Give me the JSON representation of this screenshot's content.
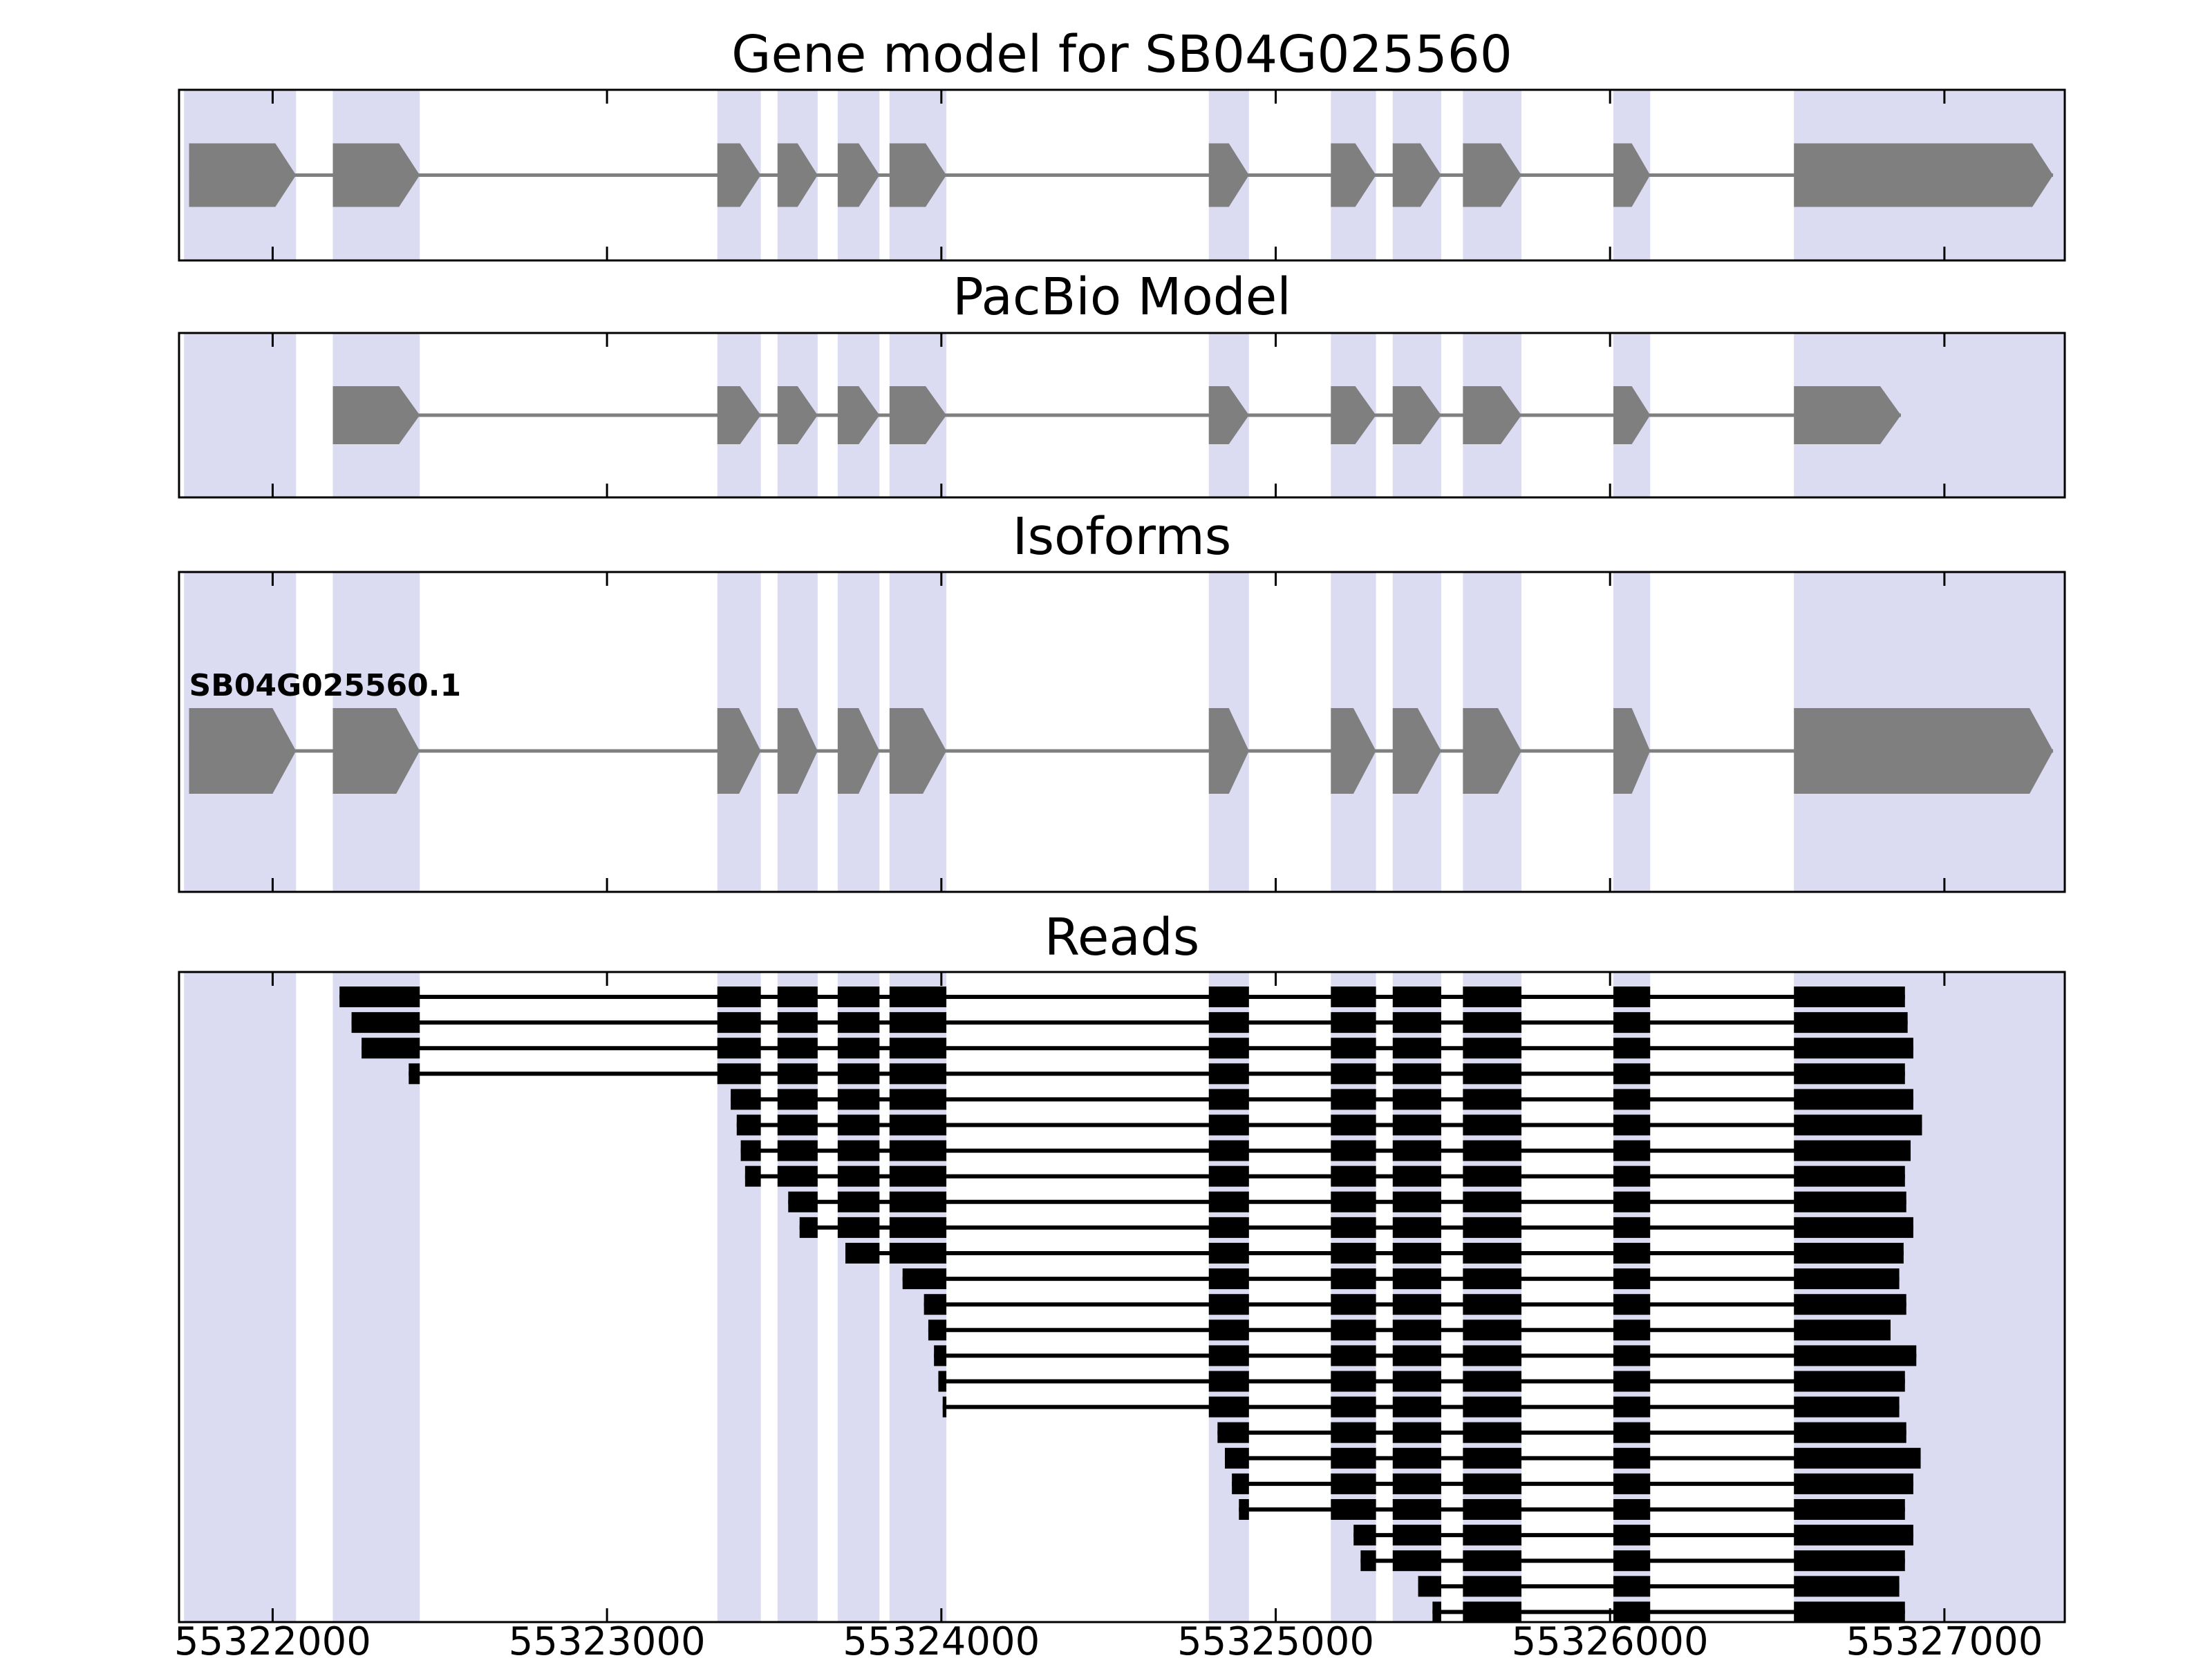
{
  "page": {
    "background": "#ffffff"
  },
  "chart_data": {
    "type": "gene-model-tracks",
    "title": "Gene model for SB04G025560",
    "axis": {
      "min": 55321720,
      "max": 55327360,
      "ticks": [
        55322000,
        55323000,
        55324000,
        55325000,
        55326000,
        55327000
      ],
      "tick_labels": [
        "55322000",
        "55323000",
        "55324000",
        "55325000",
        "55326000",
        "55327000"
      ]
    },
    "colors": {
      "exon": "#7f7f7f",
      "intron_line": "#7f7f7f",
      "highlight": "#dbdbf2",
      "read": "#000000",
      "border": "#000000"
    },
    "highlights": [
      [
        55321735,
        55322070
      ],
      [
        55322180,
        55322440
      ],
      [
        55323330,
        55323460
      ],
      [
        55323510,
        55323630
      ],
      [
        55323690,
        55323815
      ],
      [
        55323845,
        55324015
      ],
      [
        55324800,
        55324920
      ],
      [
        55325165,
        55325300
      ],
      [
        55325350,
        55325495
      ],
      [
        55325560,
        55325735
      ],
      [
        55326010,
        55326120
      ],
      [
        55326550,
        55327360
      ]
    ],
    "tracks": [
      {
        "id": "gene_model",
        "title": "Gene model for SB04G025560",
        "strand": "+",
        "exons": [
          [
            55321750,
            55322070
          ],
          [
            55322180,
            55322440
          ],
          [
            55323330,
            55323460
          ],
          [
            55323510,
            55323630
          ],
          [
            55323690,
            55323815
          ],
          [
            55323845,
            55324015
          ],
          [
            55324800,
            55324920
          ],
          [
            55325165,
            55325300
          ],
          [
            55325350,
            55325495
          ],
          [
            55325560,
            55325735
          ],
          [
            55326010,
            55326120
          ],
          [
            55326550,
            55327325
          ]
        ]
      },
      {
        "id": "pacbio_model",
        "title": "PacBio Model",
        "strand": "+",
        "exons": [
          [
            55322180,
            55322440
          ],
          [
            55323330,
            55323460
          ],
          [
            55323510,
            55323630
          ],
          [
            55323690,
            55323815
          ],
          [
            55323845,
            55324015
          ],
          [
            55324800,
            55324920
          ],
          [
            55325165,
            55325300
          ],
          [
            55325350,
            55325495
          ],
          [
            55325560,
            55325735
          ],
          [
            55326010,
            55326120
          ],
          [
            55326550,
            55326870
          ]
        ]
      },
      {
        "id": "isoforms",
        "title": "Isoforms",
        "isoforms": [
          {
            "label": "SB04G025560.1",
            "strand": "+",
            "exons": [
              [
                55321750,
                55322070
              ],
              [
                55322180,
                55322440
              ],
              [
                55323330,
                55323460
              ],
              [
                55323510,
                55323630
              ],
              [
                55323690,
                55323815
              ],
              [
                55323845,
                55324015
              ],
              [
                55324800,
                55324920
              ],
              [
                55325165,
                55325300
              ],
              [
                55325350,
                55325495
              ],
              [
                55325560,
                55325735
              ],
              [
                55326010,
                55326120
              ],
              [
                55326550,
                55327325
              ]
            ]
          }
        ]
      },
      {
        "id": "reads",
        "title": "Reads",
        "reads": [
          {
            "start": 55322200,
            "end": 55326882
          },
          {
            "start": 55322236,
            "end": 55326890
          },
          {
            "start": 55322266,
            "end": 55326907
          },
          {
            "start": 55322407,
            "end": 55326882
          },
          {
            "start": 55323370,
            "end": 55326907
          },
          {
            "start": 55323388,
            "end": 55326933
          },
          {
            "start": 55323400,
            "end": 55326899
          },
          {
            "start": 55323413,
            "end": 55326882
          },
          {
            "start": 55323542,
            "end": 55326886
          },
          {
            "start": 55323576,
            "end": 55326907
          },
          {
            "start": 55323713,
            "end": 55326878
          },
          {
            "start": 55323884,
            "end": 55326865
          },
          {
            "start": 55323948,
            "end": 55326886
          },
          {
            "start": 55323961,
            "end": 55326839
          },
          {
            "start": 55323978,
            "end": 55326916
          },
          {
            "start": 55323991,
            "end": 55326882
          },
          {
            "start": 55324004,
            "end": 55326865
          },
          {
            "start": 55324826,
            "end": 55326886
          },
          {
            "start": 55324848,
            "end": 55326929
          },
          {
            "start": 55324869,
            "end": 55326907
          },
          {
            "start": 55324890,
            "end": 55326882
          },
          {
            "start": 55325233,
            "end": 55326907
          },
          {
            "start": 55325254,
            "end": 55326882
          },
          {
            "start": 55325426,
            "end": 55326865
          },
          {
            "start": 55325469,
            "end": 55326882
          }
        ]
      }
    ]
  }
}
